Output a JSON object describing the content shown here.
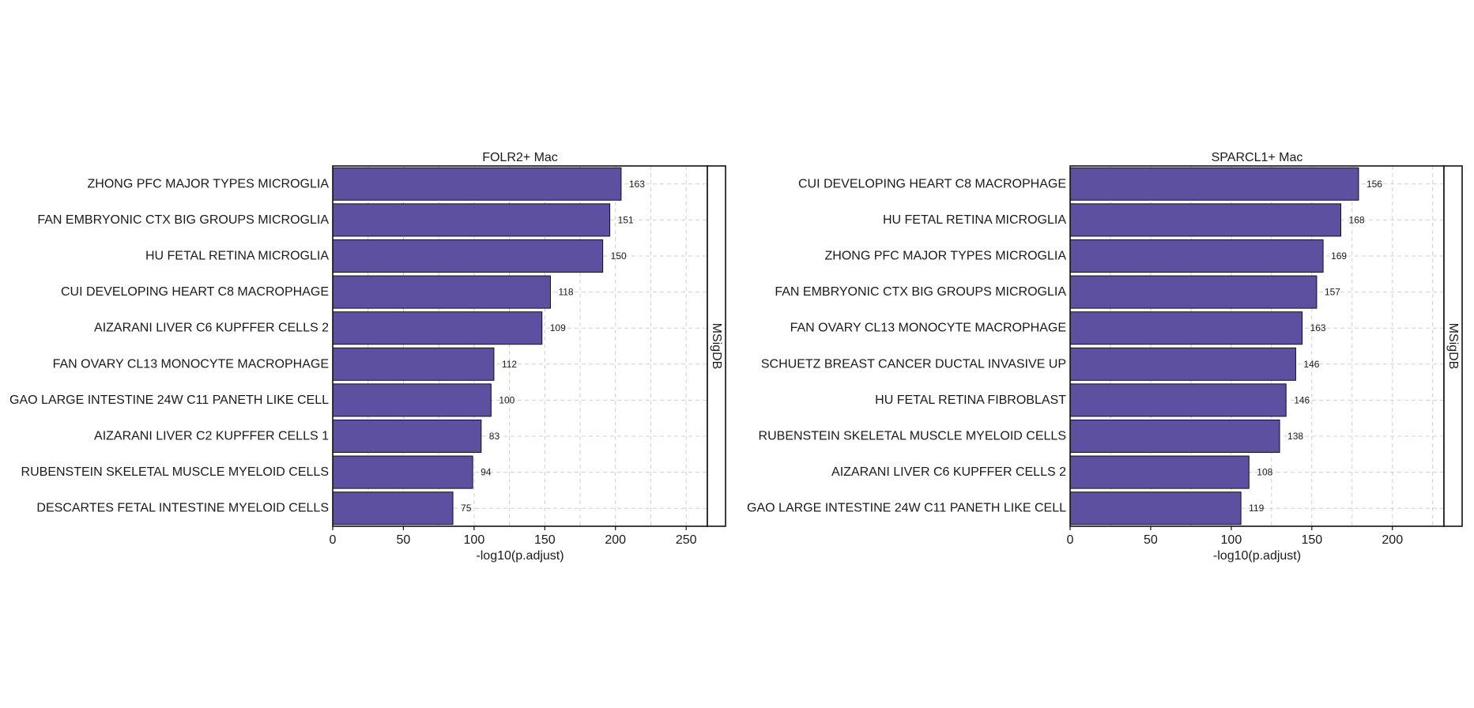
{
  "chart_data": [
    {
      "type": "bar",
      "orientation": "horizontal",
      "title": "FOLR2+ Mac",
      "xlabel": "-log10(p.adjust)",
      "strip_label": "MSigDB",
      "xlim": [
        0,
        265
      ],
      "xticks": [
        0,
        50,
        100,
        150,
        200,
        250
      ],
      "grid": true,
      "bar_color": "#5E50A1",
      "categories": [
        "ZHONG PFC MAJOR TYPES MICROGLIA",
        "FAN EMBRYONIC CTX BIG GROUPS MICROGLIA",
        "HU FETAL RETINA MICROGLIA",
        "CUI DEVELOPING HEART C8 MACROPHAGE",
        "AIZARANI LIVER C6 KUPFFER CELLS 2",
        "FAN OVARY CL13 MONOCYTE MACROPHAGE",
        "GAO LARGE INTESTINE 24W C11 PANETH LIKE CELL",
        "AIZARANI LIVER C2 KUPFFER CELLS 1",
        "RUBENSTEIN SKELETAL MUSCLE MYELOID CELLS",
        "DESCARTES FETAL INTESTINE MYELOID CELLS"
      ],
      "values": [
        204,
        196,
        191,
        154,
        148,
        114,
        112,
        105,
        99,
        85
      ],
      "data_labels": [
        "163",
        "151",
        "150",
        "118",
        "109",
        "112",
        "100",
        "83",
        "94",
        "75"
      ]
    },
    {
      "type": "bar",
      "orientation": "horizontal",
      "title": "SPARCL1+ Mac",
      "xlabel": "-log10(p.adjust)",
      "strip_label": "MSigDB",
      "xlim": [
        0,
        232
      ],
      "xticks": [
        0,
        50,
        100,
        150,
        200
      ],
      "grid": true,
      "bar_color": "#5E50A1",
      "categories": [
        "CUI DEVELOPING HEART C8 MACROPHAGE",
        "HU FETAL RETINA MICROGLIA",
        "ZHONG PFC MAJOR TYPES MICROGLIA",
        "FAN EMBRYONIC CTX BIG GROUPS MICROGLIA",
        "FAN OVARY CL13 MONOCYTE MACROPHAGE",
        "SCHUETZ BREAST CANCER DUCTAL INVASIVE UP",
        "HU FETAL RETINA FIBROBLAST",
        "RUBENSTEIN SKELETAL MUSCLE MYELOID CELLS",
        "AIZARANI LIVER C6 KUPFFER CELLS 2",
        "GAO LARGE INTESTINE 24W C11 PANETH LIKE CELL"
      ],
      "values": [
        179,
        168,
        157,
        153,
        144,
        140,
        134,
        130,
        111,
        106
      ],
      "data_labels": [
        "156",
        "168",
        "169",
        "157",
        "163",
        "146",
        "146",
        "138",
        "108",
        "119"
      ]
    }
  ]
}
